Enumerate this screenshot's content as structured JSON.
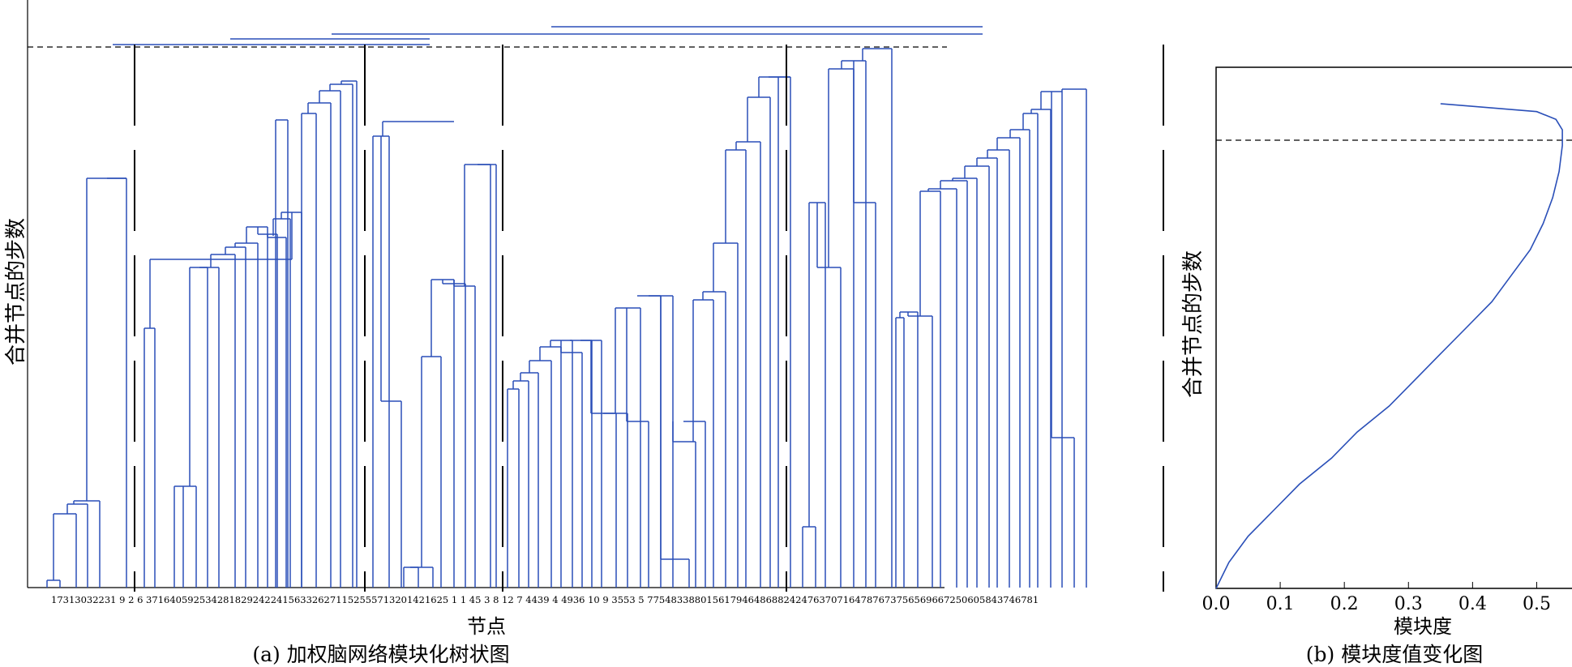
{
  "chart_data": [
    {
      "type": "dendrogram",
      "caption": "(a) 加权脑网络模块化树状图",
      "xlabel": "节点",
      "ylabel": "合并节点的步数",
      "leaf_labels_text": "17313032231 9  2  6 37164059253428182924224156332627115255571320142162511 45 3 8 12 7 4 4 39 4 49 3 6 10 9 3 5 5 3 5 7 7 5 4 8 3 8 8 0 1 5 6 1 7 9 4 6 4 8 6 8 8 2 4 2 4 7 6 3 7 0 7 1 6 4 7 8 7 6 7 3 7 5 6 5 6 9 6 6 7 2 5 0 6 0 5 8 4 3 7 4 6 7 8 1",
      "leaf_labels_display": "17313032231​9  2  6 3716405925342818292422415633262711525557132014216251 1 45  3  8 12  7 4439  4 4936 10  9 3553  5 77548338801561794648688242476370716478767375656966725060584374678 1",
      "cut_line": "dashed",
      "modules": 6
    },
    {
      "type": "line",
      "caption": "(b) 模块度值变化图",
      "xlabel": "模块度",
      "ylabel": "合并节点的步数",
      "xticks": [
        "0.0",
        "0.1",
        "0.2",
        "0.3",
        "0.4",
        "0.5"
      ],
      "xlim": [
        0.0,
        0.55
      ],
      "peak_modularity": 0.54,
      "series": [
        {
          "x": [
            0.0,
            0.02,
            0.05,
            0.09,
            0.13,
            0.18,
            0.22,
            0.27,
            0.31,
            0.35,
            0.39,
            0.43,
            0.46,
            0.49,
            0.51,
            0.525,
            0.535,
            0.54,
            0.54,
            0.53,
            0.5,
            0.45,
            0.4,
            0.35
          ],
          "y_frac": [
            0.0,
            0.05,
            0.1,
            0.15,
            0.2,
            0.25,
            0.3,
            0.35,
            0.4,
            0.45,
            0.5,
            0.55,
            0.6,
            0.65,
            0.7,
            0.75,
            0.8,
            0.85,
            0.88,
            0.9,
            0.915,
            0.92,
            0.925,
            0.93
          ]
        }
      ]
    }
  ],
  "labels": {
    "a_caption": "(a) 加权脑网络模块化树状图",
    "a_xlabel": "节点",
    "a_ylabel": "合并节点的步数",
    "b_caption": "(b) 模块度值变化图",
    "b_xlabel": "模块度",
    "b_ylabel": "合并节点的步数",
    "a_leaves": "17313032231 9  2  6 371640592534281829242241563326271152555713201421625 1 1 45  3  8 12  7 4439  4 4936 10  9 3553  5 775483388015617946486882424763707164787673756569667250605843746781"
  },
  "colors": {
    "tree": "#2a4fb8",
    "axis": "#000000"
  }
}
